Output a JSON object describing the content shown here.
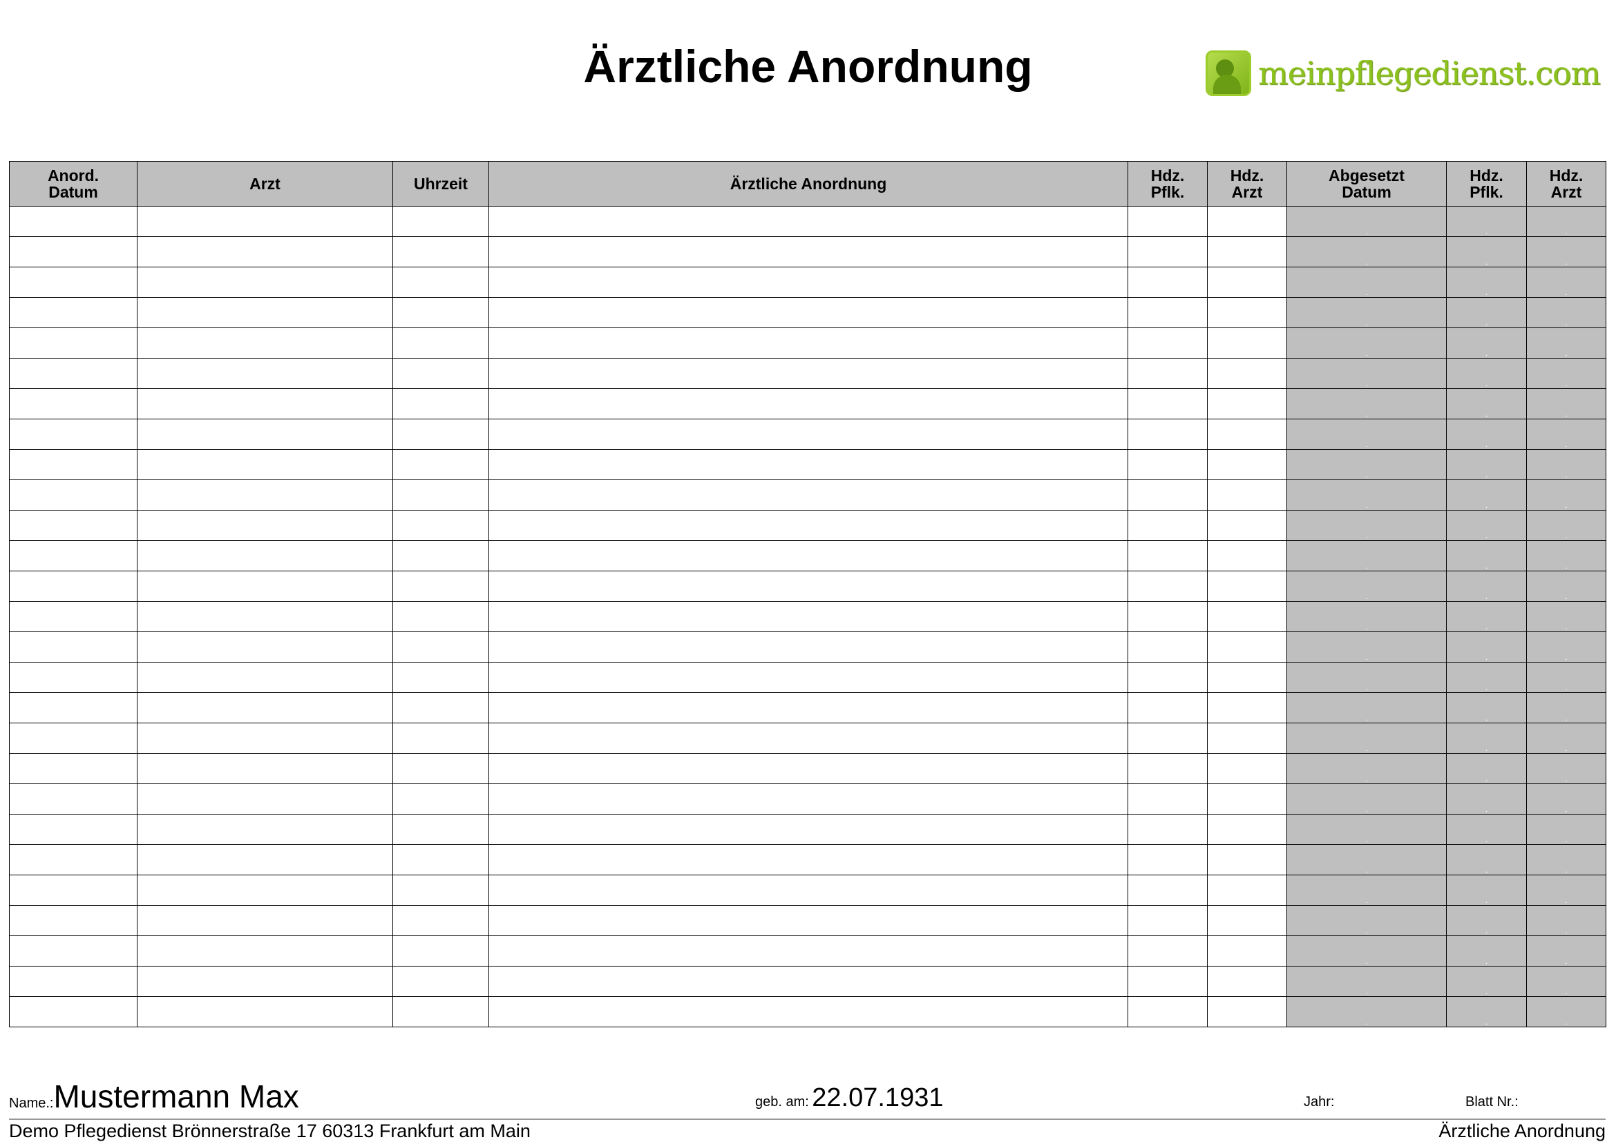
{
  "title": "Ärztliche Anordnung",
  "logo": {
    "text": "meinpflegedienst.com",
    "color": "#8cc21e"
  },
  "table": {
    "columns": [
      {
        "line1": "Anord.",
        "line2": "Datum"
      },
      {
        "line1": "Arzt",
        "line2": ""
      },
      {
        "line1": "Uhrzeit",
        "line2": ""
      },
      {
        "line1": "Ärztliche Anordnung",
        "line2": ""
      },
      {
        "line1": "Hdz.",
        "line2": "Pflk."
      },
      {
        "line1": "Hdz.",
        "line2": "Arzt"
      },
      {
        "line1": "Abgesetzt",
        "line2": "Datum"
      },
      {
        "line1": "Hdz.",
        "line2": "Pflk."
      },
      {
        "line1": "Hdz.",
        "line2": "Arzt"
      }
    ],
    "shaded_color": "#bfbfbf",
    "rows": [
      [],
      [],
      [],
      [],
      [],
      [],
      [],
      [],
      [],
      [],
      [],
      [],
      [],
      [],
      [],
      [],
      [],
      [],
      [],
      [],
      [],
      [],
      [],
      [],
      [],
      [],
      []
    ]
  },
  "footer": {
    "name_label": "Name.:",
    "name_value": "Mustermann Max",
    "dob_label": "geb. am:",
    "dob_value": "22.07.1931",
    "year_label": "Jahr:",
    "sheet_label": "Blatt Nr.:",
    "address": "Demo Pflegedienst   Brönnerstraße 17  60313 Frankfurt am Main",
    "form_name": "Ärztliche Anordnung"
  }
}
